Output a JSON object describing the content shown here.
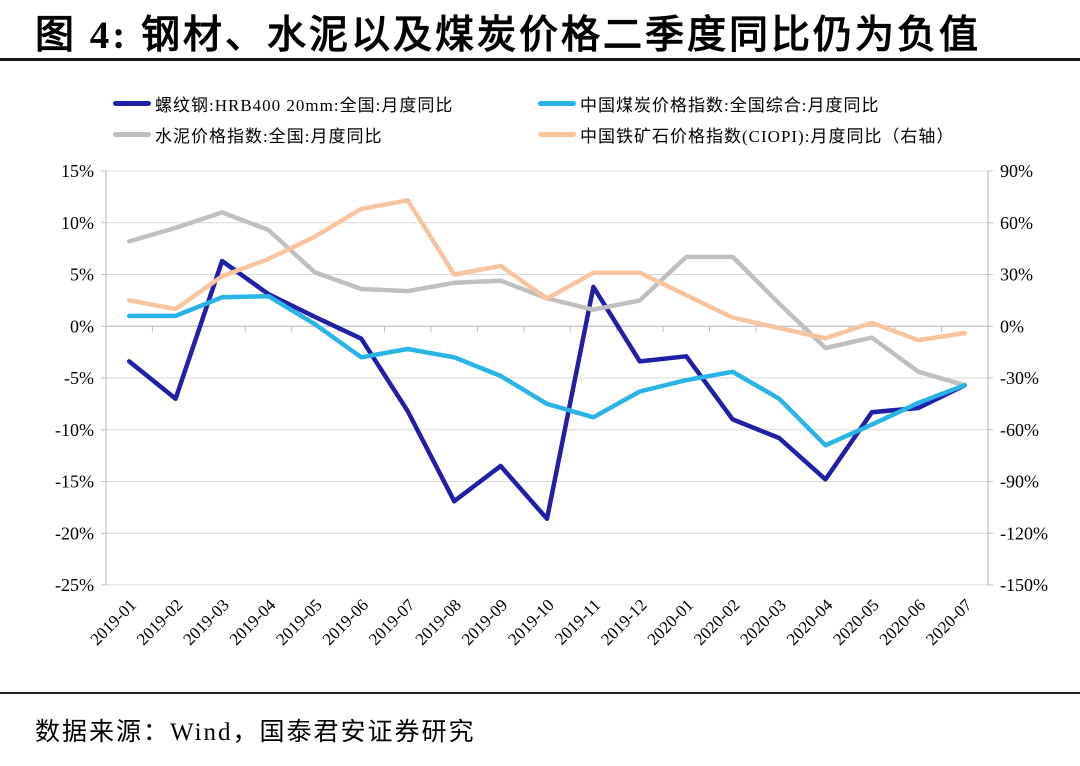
{
  "title": "图 4:  钢材、水泥以及煤炭价格二季度同比仍为负值",
  "footer": {
    "source": "数据来源：Wind，国泰君安证券研究"
  },
  "legend": {
    "items": [
      {
        "label": "螺纹钢:HRB400 20mm:全国:月度同比",
        "color": "#1f1fa8"
      },
      {
        "label": "中国煤炭价格指数:全国综合:月度同比",
        "color": "#29b4e8"
      },
      {
        "label": "水泥价格指数:全国:月度同比",
        "color": "#bfbfbf"
      },
      {
        "label": "中国铁矿石价格指数(CIOPI):月度同比（右轴）",
        "color": "#f8c49e"
      }
    ]
  },
  "chart_data": {
    "type": "line",
    "title": "图 4:  钢材、水泥以及煤炭价格二季度同比仍为负值",
    "legend_position": "top",
    "grid": "horizontal",
    "categories": [
      "2019-01",
      "2019-02",
      "2019-03",
      "2019-04",
      "2019-05",
      "2019-06",
      "2019-07",
      "2019-08",
      "2019-09",
      "2019-10",
      "2019-11",
      "2019-12",
      "2020-01",
      "2020-02",
      "2020-03",
      "2020-04",
      "2020-05",
      "2020-06",
      "2020-07"
    ],
    "series": [
      {
        "id": "rebar-steel",
        "name": "螺纹钢:HRB400 20mm:全国:月度同比",
        "axis": "left",
        "color": "#1f1fa8",
        "values": [
          -3.4,
          -7.0,
          6.3,
          3.1,
          0.9,
          -1.2,
          -8.2,
          -16.9,
          -13.5,
          -18.6,
          3.8,
          -3.4,
          -2.9,
          -9.0,
          -10.8,
          -14.8,
          -8.3,
          -7.9,
          -5.7
        ]
      },
      {
        "id": "cement",
        "name": "水泥价格指数:全国:月度同比",
        "axis": "left",
        "color": "#bfbfbf",
        "values": [
          8.2,
          9.5,
          11.0,
          9.3,
          5.2,
          3.6,
          3.4,
          4.2,
          4.4,
          2.7,
          1.6,
          2.5,
          6.7,
          6.7,
          2.2,
          -2.1,
          -1.1,
          -4.4,
          -5.7
        ]
      },
      {
        "id": "coal",
        "name": "中国煤炭价格指数:全国综合:月度同比",
        "axis": "left",
        "color": "#29b4e8",
        "values": [
          1.0,
          1.0,
          2.8,
          2.9,
          0.2,
          -3.0,
          -2.2,
          -3.0,
          -4.8,
          -7.5,
          -8.8,
          -6.3,
          -5.2,
          -4.4,
          -7.0,
          -11.5,
          -9.5,
          -7.4,
          -5.7
        ]
      },
      {
        "id": "iron-ore",
        "name": "中国铁矿石价格指数(CIOPI):月度同比（右轴）",
        "axis": "right",
        "color": "#f8c49e",
        "values": [
          15,
          10,
          29,
          39,
          52,
          68,
          73,
          30,
          35,
          16,
          31,
          31,
          18,
          5,
          -1,
          -7,
          2,
          -8,
          -4
        ]
      }
    ],
    "left_axis": {
      "min": -25,
      "max": 15,
      "ticks": [
        {
          "v": 15,
          "label": "15%"
        },
        {
          "v": 10,
          "label": "10%"
        },
        {
          "v": 5,
          "label": "5%"
        },
        {
          "v": 0,
          "label": "0%"
        },
        {
          "v": -5,
          "label": "-5%"
        },
        {
          "v": -10,
          "label": "-10%"
        },
        {
          "v": -15,
          "label": "-15%"
        },
        {
          "v": -20,
          "label": "-20%"
        },
        {
          "v": -25,
          "label": "-25%"
        }
      ]
    },
    "right_axis": {
      "min": -150,
      "max": 90,
      "ticks": [
        {
          "v": 90,
          "label": "90%"
        },
        {
          "v": 60,
          "label": "60%"
        },
        {
          "v": 30,
          "label": "30%"
        },
        {
          "v": 0,
          "label": "0%"
        },
        {
          "v": -30,
          "label": "-30%"
        },
        {
          "v": -60,
          "label": "-60%"
        },
        {
          "v": -90,
          "label": "-90%"
        },
        {
          "v": -120,
          "label": "-120%"
        },
        {
          "v": -150,
          "label": "-150%"
        }
      ]
    },
    "colors": {
      "grid": "#d9d9d9",
      "axis": "#bfbfbf"
    }
  }
}
